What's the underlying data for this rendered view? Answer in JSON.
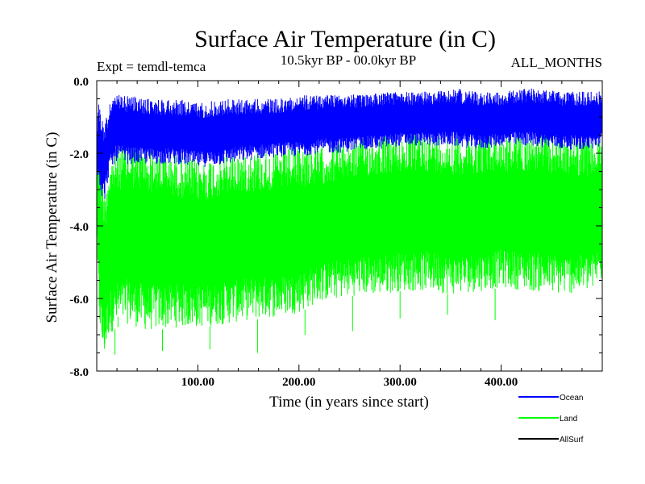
{
  "chart_data": {
    "type": "line",
    "title": "Surface Air Temperature (in C)",
    "subtitle_left": "Expt = temdl-temca",
    "subtitle_center": "10.5kyr BP - 00.0kyr BP",
    "subtitle_right": "ALL_MONTHS",
    "xlabel": "Time (in years since start)",
    "ylabel": "Surface Air Temperature (in C)",
    "xlim": [
      0,
      500
    ],
    "ylim": [
      -8.0,
      0.0
    ],
    "x_ticks": [
      {
        "value": 100,
        "label": "100.00"
      },
      {
        "value": 200,
        "label": "200.00"
      },
      {
        "value": 300,
        "label": "300.00"
      },
      {
        "value": 400,
        "label": "400.00"
      }
    ],
    "y_ticks": [
      {
        "value": 0.0,
        "label": "0.0"
      },
      {
        "value": -2.0,
        "label": "-2.0"
      },
      {
        "value": -4.0,
        "label": "-4.0"
      },
      {
        "value": -6.0,
        "label": "-6.0"
      },
      {
        "value": -8.0,
        "label": "-8.0"
      }
    ],
    "legend_position": "bottom-right",
    "series": [
      {
        "name": "Land",
        "color": "#00ff00",
        "x": [
          0,
          2,
          5,
          8,
          12,
          20,
          30,
          50,
          80,
          100,
          130,
          150,
          180,
          200,
          220,
          240,
          260,
          280,
          300,
          330,
          350,
          380,
          400,
          430,
          460,
          490,
          500
        ],
        "upper": [
          -1.0,
          -0.8,
          -2.5,
          -3.0,
          -2.2,
          -1.8,
          -1.7,
          -1.8,
          -2.0,
          -2.2,
          -2.0,
          -1.9,
          -1.9,
          -1.8,
          -1.8,
          -1.7,
          -1.6,
          -1.5,
          -1.5,
          -1.4,
          -1.5,
          -1.5,
          -1.5,
          -1.4,
          -1.5,
          -1.6,
          -1.5
        ],
        "lower": [
          -5.0,
          -6.5,
          -7.5,
          -7.6,
          -7.0,
          -6.8,
          -6.7,
          -6.9,
          -6.8,
          -6.8,
          -6.7,
          -6.6,
          -6.5,
          -6.4,
          -6.1,
          -6.0,
          -5.9,
          -5.9,
          -5.8,
          -5.8,
          -5.9,
          -5.8,
          -5.7,
          -5.8,
          -5.9,
          -5.8,
          -5.5
        ],
        "spikes": [
          -7.55,
          -7.45,
          -7.4,
          -7.5,
          -7.0,
          -6.9,
          -6.55,
          -6.45,
          -6.6,
          -6.5
        ]
      },
      {
        "name": "Ocean",
        "color": "#0000ff",
        "x": [
          0,
          2,
          5,
          8,
          12,
          20,
          30,
          50,
          80,
          100,
          130,
          150,
          180,
          200,
          220,
          240,
          260,
          280,
          300,
          330,
          350,
          380,
          400,
          430,
          460,
          490,
          500
        ],
        "upper": [
          -1.2,
          -0.6,
          -1.0,
          -1.2,
          -0.6,
          -0.4,
          -0.4,
          -0.5,
          -0.5,
          -0.6,
          -0.5,
          -0.5,
          -0.5,
          -0.4,
          -0.4,
          -0.3,
          -0.4,
          -0.3,
          -0.3,
          -0.3,
          -0.2,
          -0.3,
          -0.3,
          -0.2,
          -0.3,
          -0.3,
          -0.3
        ],
        "lower": [
          -2.5,
          -2.8,
          -3.2,
          -3.3,
          -2.6,
          -2.2,
          -2.3,
          -2.3,
          -2.3,
          -2.4,
          -2.3,
          -2.2,
          -2.1,
          -2.1,
          -2.0,
          -2.0,
          -1.9,
          -1.9,
          -1.8,
          -1.8,
          -1.8,
          -1.9,
          -1.8,
          -1.8,
          -1.9,
          -1.9,
          -1.8
        ]
      },
      {
        "name": "AllSurf",
        "color": "#000000",
        "x": [],
        "upper": [],
        "lower": []
      }
    ]
  }
}
